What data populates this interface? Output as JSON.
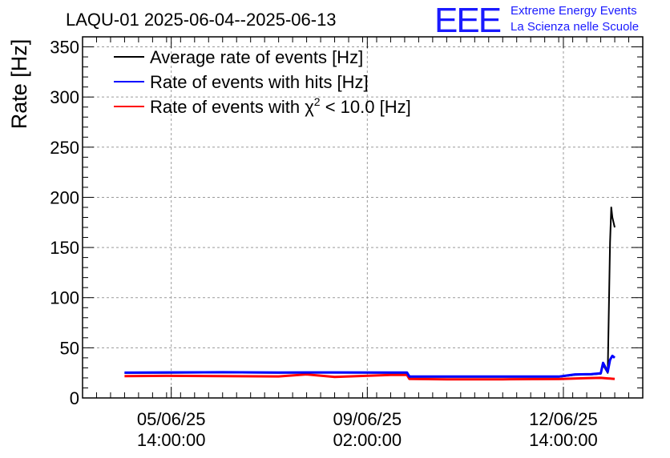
{
  "header": {
    "title": "LAQU-01 2025-06-04--2025-06-13",
    "logo_mark": "EEE",
    "logo_line1": "Extreme Energy Events",
    "logo_line2": "La Scienza nelle Scuole"
  },
  "colors": {
    "average": "#000000",
    "hits": "#0000ff",
    "chi2": "#ff0000",
    "grid": "#9a9a9a",
    "logo": "#1a1aff"
  },
  "chart_data": {
    "type": "line",
    "ylabel": "Rate [Hz]",
    "xlabel": "",
    "ylim": [
      0,
      360
    ],
    "yticks": [
      0,
      50,
      100,
      150,
      200,
      250,
      300,
      350
    ],
    "ytick_labels": [
      "0",
      "50",
      "100",
      "150",
      "200",
      "250",
      "300",
      "350"
    ],
    "xlim": [
      "2025-06-04 00:00",
      "2025-06-14 00:00"
    ],
    "xticks": [
      {
        "at": "2025-06-05 14:00",
        "line1": "05/06/25",
        "line2": "14:00:00"
      },
      {
        "at": "2025-06-09 02:00",
        "line1": "09/06/25",
        "line2": "02:00:00"
      },
      {
        "at": "2025-06-12 14:00",
        "line1": "12/06/25",
        "line2": "14:00:00"
      }
    ],
    "grid": true,
    "legend_position": "top-left",
    "legend": {
      "average": "Average rate of events [Hz]",
      "hits": "Rate of events with hits [Hz]",
      "chi2_prefix": "Rate of events with ",
      "chi2_symbol": "χ",
      "chi2_exp": "2",
      "chi2_suffix": " < 10.0 [Hz]"
    },
    "series": [
      {
        "name": "Average rate of events [Hz]",
        "key": "average",
        "x": [
          "2025-06-04 18:00",
          "2025-06-05 12:00",
          "2025-06-06 12:00",
          "2025-06-07 12:00",
          "2025-06-08 12:00",
          "2025-06-09 12:00",
          "2025-06-09 19:00",
          "2025-06-09 20:00",
          "2025-06-10 12:00",
          "2025-06-11 12:00",
          "2025-06-12 12:00",
          "2025-06-12 19:00",
          "2025-06-13 02:00",
          "2025-06-13 06:00",
          "2025-06-13 07:00",
          "2025-06-13 09:00",
          "2025-06-13 10:00",
          "2025-06-13 10:30",
          "2025-06-13 11:00",
          "2025-06-13 12:00"
        ],
        "y": [
          24.8,
          25.0,
          25.2,
          25.0,
          25.1,
          25.0,
          25.0,
          21.0,
          20.9,
          21.0,
          21.0,
          23.0,
          23.4,
          24.0,
          33.0,
          25.0,
          155.0,
          190.0,
          180.0,
          170.0
        ]
      },
      {
        "name": "Rate of events with hits [Hz]",
        "key": "hits",
        "x": [
          "2025-06-04 18:00",
          "2025-06-05 12:00",
          "2025-06-06 12:00",
          "2025-06-07 12:00",
          "2025-06-08 12:00",
          "2025-06-09 12:00",
          "2025-06-09 19:00",
          "2025-06-09 20:00",
          "2025-06-10 12:00",
          "2025-06-11 12:00",
          "2025-06-12 12:00",
          "2025-06-12 19:00",
          "2025-06-13 02:00",
          "2025-06-13 06:00",
          "2025-06-13 07:00",
          "2025-06-13 09:00",
          "2025-06-13 10:00",
          "2025-06-13 11:00",
          "2025-06-13 12:00"
        ],
        "y": [
          25.2,
          25.5,
          25.6,
          25.4,
          25.5,
          25.4,
          25.4,
          21.4,
          21.3,
          21.4,
          21.3,
          23.5,
          23.8,
          24.5,
          35.0,
          26.0,
          38.0,
          42.0,
          40.0
        ]
      },
      {
        "name": "Rate of events with χ2 < 10.0 [Hz]",
        "key": "chi2",
        "x": [
          "2025-06-04 18:00",
          "2025-06-05 12:00",
          "2025-06-06 12:00",
          "2025-06-07 12:00",
          "2025-06-08 00:00",
          "2025-06-08 12:00",
          "2025-06-09 12:00",
          "2025-06-09 19:00",
          "2025-06-09 20:00",
          "2025-06-10 12:00",
          "2025-06-11 12:00",
          "2025-06-12 12:00",
          "2025-06-13 00:00",
          "2025-06-13 06:00",
          "2025-06-13 09:00",
          "2025-06-13 12:00"
        ],
        "y": [
          21.8,
          22.0,
          21.8,
          21.5,
          23.5,
          21.0,
          23.0,
          23.0,
          19.0,
          18.6,
          18.6,
          18.8,
          19.8,
          20.0,
          19.5,
          19.0
        ]
      }
    ]
  }
}
